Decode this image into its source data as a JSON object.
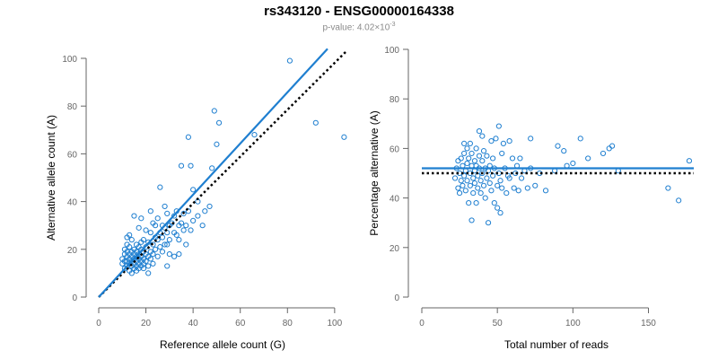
{
  "title": "rs343120 - ENSG00000164338",
  "subtitle": {
    "prefix": "p-value: ",
    "mantissa": "4.02",
    "times": "×10",
    "exponent": "-3"
  },
  "colors": {
    "points": "#1f7fd0",
    "fit": "#1f7fd0",
    "reference": "#000000",
    "axis": "#666666"
  },
  "chart_data": [
    {
      "type": "scatter",
      "xlabel": "Reference allele count (G)",
      "ylabel": "Alternative allele count (A)",
      "xlim": [
        0,
        105
      ],
      "ylim": [
        0,
        100
      ],
      "xticks": [
        0,
        20,
        40,
        60,
        80,
        100
      ],
      "yticks": [
        0,
        20,
        40,
        60,
        80,
        100
      ],
      "points": [
        [
          10,
          14
        ],
        [
          10,
          16
        ],
        [
          11,
          12
        ],
        [
          11,
          15
        ],
        [
          11,
          18
        ],
        [
          11,
          20
        ],
        [
          12,
          13
        ],
        [
          12,
          15
        ],
        [
          12,
          17
        ],
        [
          12,
          19
        ],
        [
          12,
          22
        ],
        [
          12,
          25
        ],
        [
          13,
          11
        ],
        [
          13,
          14
        ],
        [
          13,
          16
        ],
        [
          13,
          18
        ],
        [
          13,
          21
        ],
        [
          13,
          26
        ],
        [
          14,
          10
        ],
        [
          14,
          13
        ],
        [
          14,
          15
        ],
        [
          14,
          17
        ],
        [
          14,
          19
        ],
        [
          14,
          24
        ],
        [
          15,
          12
        ],
        [
          15,
          14
        ],
        [
          15,
          16
        ],
        [
          15,
          18
        ],
        [
          15,
          20
        ],
        [
          15,
          34
        ],
        [
          16,
          11
        ],
        [
          16,
          13
        ],
        [
          16,
          15
        ],
        [
          16,
          17
        ],
        [
          16,
          19
        ],
        [
          16,
          22
        ],
        [
          17,
          12
        ],
        [
          17,
          14
        ],
        [
          17,
          16
        ],
        [
          17,
          18
        ],
        [
          17,
          21
        ],
        [
          17,
          29
        ],
        [
          18,
          13
        ],
        [
          18,
          15
        ],
        [
          18,
          17
        ],
        [
          18,
          20
        ],
        [
          18,
          23
        ],
        [
          18,
          33
        ],
        [
          19,
          12
        ],
        [
          19,
          14
        ],
        [
          19,
          16
        ],
        [
          19,
          19
        ],
        [
          19,
          24
        ],
        [
          20,
          15
        ],
        [
          20,
          18
        ],
        [
          20,
          21
        ],
        [
          20,
          28
        ],
        [
          21,
          10
        ],
        [
          21,
          13
        ],
        [
          21,
          17
        ],
        [
          21,
          23
        ],
        [
          22,
          16
        ],
        [
          22,
          19
        ],
        [
          22,
          27
        ],
        [
          22,
          36
        ],
        [
          23,
          14
        ],
        [
          23,
          18
        ],
        [
          23,
          22
        ],
        [
          23,
          31
        ],
        [
          24,
          20
        ],
        [
          24,
          25
        ],
        [
          24,
          30
        ],
        [
          25,
          17
        ],
        [
          25,
          24
        ],
        [
          25,
          33
        ],
        [
          26,
          21
        ],
        [
          26,
          27
        ],
        [
          26,
          46
        ],
        [
          27,
          19
        ],
        [
          27,
          25
        ],
        [
          27,
          30
        ],
        [
          28,
          22
        ],
        [
          28,
          29
        ],
        [
          28,
          38
        ],
        [
          29,
          13
        ],
        [
          29,
          22
        ],
        [
          29,
          27
        ],
        [
          29,
          35
        ],
        [
          30,
          18
        ],
        [
          30,
          24
        ],
        [
          30,
          30
        ],
        [
          31,
          31
        ],
        [
          32,
          17
        ],
        [
          32,
          27
        ],
        [
          32,
          34
        ],
        [
          33,
          26
        ],
        [
          33,
          36
        ],
        [
          34,
          24
        ],
        [
          34,
          30
        ],
        [
          34,
          18
        ],
        [
          35,
          31
        ],
        [
          35,
          55
        ],
        [
          36,
          28
        ],
        [
          36,
          35
        ],
        [
          37,
          22
        ],
        [
          37,
          30
        ],
        [
          38,
          36
        ],
        [
          38,
          67
        ],
        [
          39,
          28
        ],
        [
          39,
          55
        ],
        [
          40,
          32
        ],
        [
          40,
          45
        ],
        [
          42,
          34
        ],
        [
          42,
          40
        ],
        [
          44,
          30
        ],
        [
          45,
          36
        ],
        [
          47,
          38
        ],
        [
          48,
          54
        ],
        [
          49,
          78
        ],
        [
          50,
          64
        ],
        [
          51,
          73
        ],
        [
          66,
          68
        ],
        [
          81,
          99
        ],
        [
          92,
          73
        ],
        [
          104,
          67
        ]
      ],
      "fit_line": {
        "x": [
          0,
          97
        ],
        "y": [
          0,
          104
        ]
      },
      "reference_line": {
        "x": [
          0,
          105
        ],
        "y": [
          0,
          103
        ]
      }
    },
    {
      "type": "scatter",
      "xlabel": "Total number of reads",
      "ylabel": "Percentage alternative (A)",
      "xlim": [
        0,
        180
      ],
      "ylim": [
        0,
        100
      ],
      "xticks": [
        0,
        50,
        100,
        150
      ],
      "yticks": [
        0,
        20,
        40,
        60,
        80,
        100
      ],
      "points": [
        [
          22,
          48
        ],
        [
          23,
          52
        ],
        [
          24,
          55
        ],
        [
          24,
          44
        ],
        [
          25,
          50
        ],
        [
          25,
          42
        ],
        [
          26,
          56
        ],
        [
          26,
          47
        ],
        [
          27,
          53
        ],
        [
          27,
          45
        ],
        [
          28,
          58
        ],
        [
          28,
          49
        ],
        [
          28,
          62
        ],
        [
          29,
          51
        ],
        [
          29,
          43
        ],
        [
          30,
          54
        ],
        [
          30,
          47
        ],
        [
          30,
          60
        ],
        [
          31,
          38
        ],
        [
          31,
          56
        ],
        [
          32,
          50
        ],
        [
          32,
          45
        ],
        [
          32,
          62
        ],
        [
          33,
          53
        ],
        [
          33,
          31
        ],
        [
          33,
          58
        ],
        [
          34,
          48
        ],
        [
          34,
          42
        ],
        [
          35,
          55
        ],
        [
          35,
          51
        ],
        [
          35,
          46
        ],
        [
          36,
          60
        ],
        [
          36,
          38
        ],
        [
          36,
          53
        ],
        [
          37,
          49
        ],
        [
          37,
          44
        ],
        [
          38,
          57
        ],
        [
          38,
          52
        ],
        [
          38,
          67
        ],
        [
          39,
          47
        ],
        [
          39,
          42
        ],
        [
          40,
          55
        ],
        [
          40,
          50
        ],
        [
          40,
          65
        ],
        [
          41,
          45
        ],
        [
          41,
          59
        ],
        [
          42,
          52
        ],
        [
          42,
          40
        ],
        [
          43,
          48
        ],
        [
          43,
          57
        ],
        [
          44,
          30
        ],
        [
          44,
          51
        ],
        [
          45,
          46
        ],
        [
          45,
          53
        ],
        [
          46,
          63
        ],
        [
          46,
          43
        ],
        [
          47,
          49
        ],
        [
          47,
          56
        ],
        [
          48,
          38
        ],
        [
          48,
          52
        ],
        [
          49,
          64
        ],
        [
          50,
          45
        ],
        [
          50,
          36
        ],
        [
          51,
          50
        ],
        [
          51,
          69
        ],
        [
          52,
          47
        ],
        [
          52,
          34
        ],
        [
          53,
          44
        ],
        [
          53,
          58
        ],
        [
          54,
          62
        ],
        [
          55,
          52
        ],
        [
          56,
          42
        ],
        [
          57,
          49
        ],
        [
          58,
          48
        ],
        [
          58,
          63
        ],
        [
          60,
          56
        ],
        [
          61,
          44
        ],
        [
          62,
          50
        ],
        [
          63,
          53
        ],
        [
          64,
          43
        ],
        [
          65,
          56
        ],
        [
          66,
          48
        ],
        [
          68,
          51
        ],
        [
          70,
          44
        ],
        [
          72,
          52
        ],
        [
          72,
          64
        ],
        [
          75,
          45
        ],
        [
          78,
          50
        ],
        [
          82,
          43
        ],
        [
          88,
          51
        ],
        [
          90,
          61
        ],
        [
          94,
          59
        ],
        [
          96,
          53
        ],
        [
          100,
          54
        ],
        [
          105,
          64
        ],
        [
          110,
          56
        ],
        [
          120,
          58
        ],
        [
          124,
          60
        ],
        [
          126,
          61
        ],
        [
          130,
          51
        ],
        [
          163,
          44
        ],
        [
          170,
          39
        ],
        [
          177,
          55
        ]
      ],
      "fit_line": {
        "x": [
          0,
          180
        ],
        "y": [
          52,
          52
        ]
      },
      "reference_line": {
        "x": [
          0,
          180
        ],
        "y": [
          50,
          50
        ]
      }
    }
  ]
}
